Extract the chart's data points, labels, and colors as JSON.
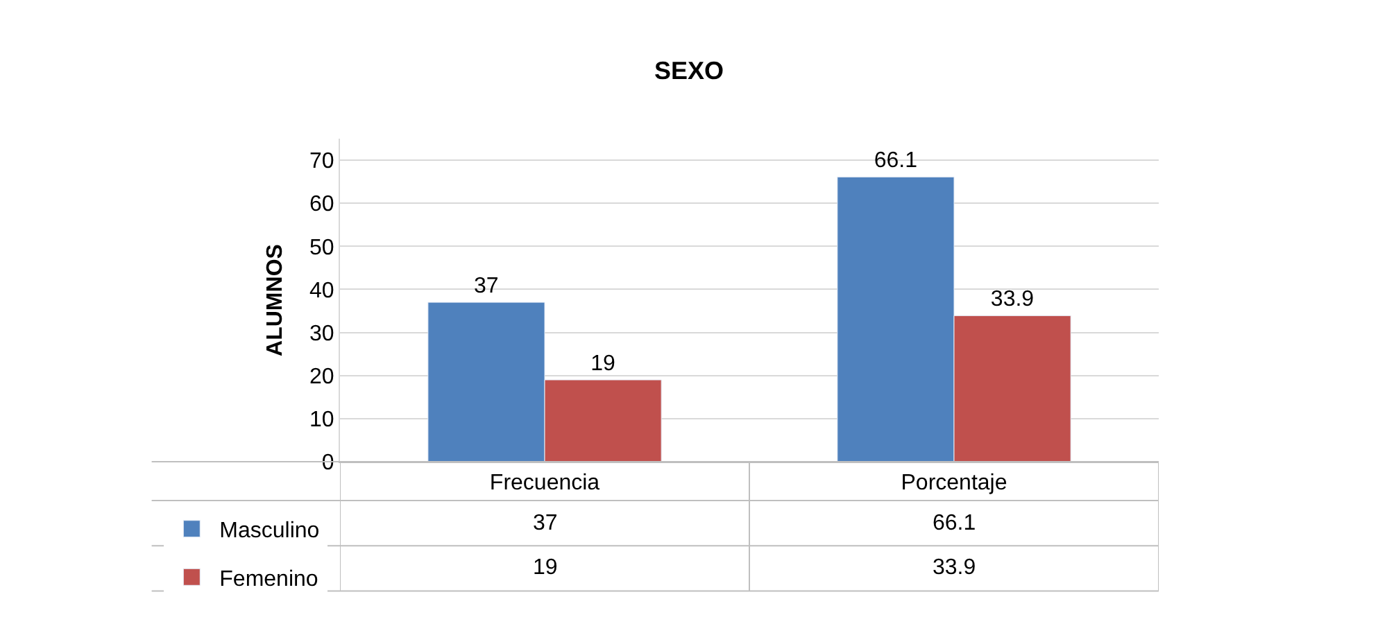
{
  "chart_data": {
    "type": "bar",
    "title": "SEXO",
    "ylabel": "ALUMNOS",
    "categories": [
      "Frecuencia",
      "Porcentaje"
    ],
    "series": [
      {
        "name": "Masculino",
        "color": "#4f81bd",
        "values": [
          37,
          66.1
        ]
      },
      {
        "name": "Femenino",
        "color": "#c0504d",
        "values": [
          19,
          33.9
        ]
      }
    ],
    "annotations": [
      "37",
      "66.1",
      "19",
      "33.9"
    ],
    "ylim": [
      0,
      75
    ],
    "yticks": [
      0,
      10,
      20,
      30,
      40,
      50,
      60,
      70
    ],
    "grid": "y",
    "data_labels": true,
    "legend": "bottom left"
  }
}
